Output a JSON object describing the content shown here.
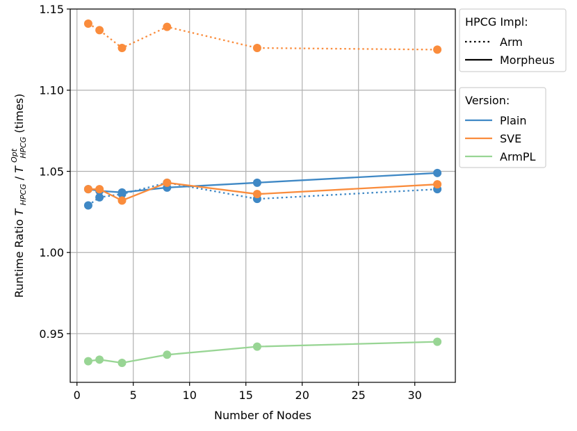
{
  "chart_data": {
    "type": "line",
    "title": "",
    "xlabel": "Number of Nodes",
    "ylabel": {
      "prefix": "Runtime Ratio ",
      "num": "T",
      "num_sub": "HPCG",
      "slash": " / ",
      "den": "T",
      "den_sub": "HPCG",
      "den_sup": "Opt",
      "suffix": " (times)"
    },
    "xlim": [
      -0.6,
      33.6
    ],
    "ylim": [
      0.92,
      1.15
    ],
    "xticks": [
      0,
      5,
      10,
      15,
      20,
      25,
      30
    ],
    "xtick_labels": [
      "0",
      "5",
      "10",
      "15",
      "20",
      "25",
      "30"
    ],
    "yticks": [
      0.95,
      1.0,
      1.05,
      1.1,
      1.15
    ],
    "ytick_labels": [
      "0.95",
      "1.00",
      "1.05",
      "1.10",
      "1.15"
    ],
    "grid": true,
    "x": [
      1,
      2,
      4,
      8,
      16,
      32
    ],
    "series": [
      {
        "version": "Plain",
        "impl": "Arm",
        "color": "#3f88c5",
        "values": [
          1.029,
          1.034,
          1.036,
          1.043,
          1.033,
          1.039
        ]
      },
      {
        "version": "Plain",
        "impl": "Morpheus",
        "color": "#3f88c5",
        "values": [
          1.039,
          1.038,
          1.037,
          1.04,
          1.043,
          1.049
        ]
      },
      {
        "version": "SVE",
        "impl": "Arm",
        "color": "#fa8c3c",
        "values": [
          1.141,
          1.137,
          1.126,
          1.139,
          1.126,
          1.125
        ]
      },
      {
        "version": "SVE",
        "impl": "Morpheus",
        "color": "#fa8c3c",
        "values": [
          1.039,
          1.039,
          1.032,
          1.043,
          1.036,
          1.042
        ]
      },
      {
        "version": "ArmPL",
        "impl": "Morpheus",
        "color": "#98d594",
        "values": [
          0.933,
          0.934,
          0.932,
          0.937,
          0.942,
          0.945
        ]
      }
    ],
    "legends": [
      {
        "title": "HPCG Impl:",
        "placement": "right-top",
        "entries": [
          {
            "label": "Arm",
            "style": "dotted",
            "color": "#000000"
          },
          {
            "label": "Morpheus",
            "style": "solid",
            "color": "#000000"
          }
        ]
      },
      {
        "title": "Version:",
        "placement": "right",
        "entries": [
          {
            "label": "Plain",
            "style": "solid",
            "color": "#3f88c5"
          },
          {
            "label": "SVE",
            "style": "solid",
            "color": "#fa8c3c"
          },
          {
            "label": "ArmPL",
            "style": "solid",
            "color": "#98d594"
          }
        ]
      }
    ]
  }
}
